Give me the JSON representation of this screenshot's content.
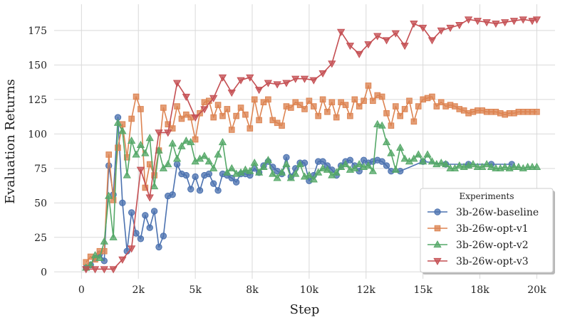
{
  "chart_data": {
    "type": "line",
    "xlabel": "Step",
    "ylabel": "Evaluation Returns",
    "xlim": [
      -1200,
      20800
    ],
    "ylim": [
      -5,
      194
    ],
    "xticks": [
      0,
      2500,
      5000,
      7500,
      10000,
      12500,
      15000,
      17500,
      20000
    ],
    "xtick_labels": [
      "0",
      "2k",
      "5k",
      "8k",
      "10k",
      "12k",
      "15k",
      "18k",
      "20k"
    ],
    "yticks": [
      0,
      25,
      50,
      75,
      100,
      125,
      150,
      175
    ],
    "ytick_labels": [
      "0",
      "25",
      "50",
      "75",
      "100",
      "125",
      "150",
      "175"
    ],
    "grid": true,
    "legend": {
      "title": "Experiments",
      "placement": "lower-right"
    },
    "series": [
      {
        "name": "3b-26w-baseline",
        "color": "#4c72b0",
        "marker": "circle",
        "x": [
          200,
          400,
          600,
          800,
          1000,
          1200,
          1400,
          1600,
          1800,
          2000,
          2200,
          2400,
          2600,
          2800,
          3000,
          3200,
          3400,
          3600,
          3800,
          4000,
          4200,
          4400,
          4600,
          4800,
          5000,
          5200,
          5400,
          5600,
          5800,
          6000,
          6200,
          6400,
          6600,
          6800,
          7000,
          7200,
          7400,
          7600,
          7800,
          8000,
          8200,
          8400,
          8600,
          8800,
          9000,
          9200,
          9400,
          9600,
          9800,
          10000,
          10200,
          10400,
          10600,
          10800,
          11000,
          11200,
          11400,
          11600,
          11800,
          12000,
          12200,
          12400,
          12600,
          12800,
          13000,
          13200,
          13400,
          13600,
          14000,
          15000,
          16000,
          17000,
          18000,
          18900
        ],
        "y": [
          3,
          5,
          10,
          13,
          8,
          77,
          56,
          112,
          50,
          15,
          43,
          28,
          24,
          41,
          32,
          44,
          18,
          26,
          55,
          56,
          78,
          71,
          70,
          60,
          69,
          59,
          70,
          71,
          64,
          59,
          71,
          70,
          68,
          65,
          71,
          71,
          70,
          75,
          72,
          77,
          80,
          76,
          73,
          71,
          83,
          69,
          75,
          79,
          79,
          66,
          70,
          80,
          80,
          77,
          74,
          70,
          77,
          80,
          81,
          77,
          73,
          81,
          79,
          80,
          81,
          80,
          77,
          73,
          73,
          80,
          78,
          78,
          78,
          78
        ]
      },
      {
        "name": "3b-26w-opt-v1",
        "color": "#dd8452",
        "marker": "square",
        "x": [
          200,
          400,
          600,
          800,
          1000,
          1200,
          1400,
          1600,
          1800,
          2000,
          2200,
          2400,
          2600,
          2800,
          3000,
          3200,
          3400,
          3600,
          3800,
          4000,
          4200,
          4400,
          4600,
          4800,
          5000,
          5200,
          5400,
          5600,
          5800,
          6000,
          6200,
          6400,
          6600,
          6800,
          7000,
          7200,
          7400,
          7600,
          7800,
          8000,
          8200,
          8400,
          8600,
          8800,
          9000,
          9200,
          9400,
          9600,
          9800,
          10000,
          10200,
          10400,
          10600,
          10800,
          11000,
          11200,
          11400,
          11600,
          11800,
          12000,
          12200,
          12400,
          12600,
          12800,
          13000,
          13200,
          13400,
          13600,
          13800,
          14000,
          14200,
          14400,
          14600,
          14800,
          15000,
          15200,
          15400,
          15600,
          15800,
          16000,
          16200,
          16400,
          16600,
          16800,
          17000,
          17200,
          17400,
          17600,
          17800,
          18000,
          18200,
          18400,
          18600,
          18800,
          19000,
          19200,
          19400,
          19600,
          19800,
          20000
        ],
        "y": [
          7,
          11,
          9,
          15,
          15,
          85,
          52,
          90,
          107,
          83,
          111,
          127,
          118,
          61,
          78,
          70,
          88,
          119,
          107,
          104,
          120,
          111,
          114,
          112,
          96,
          115,
          123,
          124,
          112,
          121,
          113,
          118,
          103,
          113,
          119,
          114,
          104,
          125,
          110,
          123,
          125,
          110,
          108,
          106,
          120,
          119,
          123,
          121,
          118,
          124,
          120,
          113,
          125,
          116,
          123,
          112,
          123,
          121,
          113,
          125,
          120,
          124,
          135,
          124,
          128,
          127,
          115,
          106,
          120,
          113,
          118,
          124,
          109,
          120,
          125,
          126,
          127,
          120,
          123,
          120,
          121,
          120,
          118,
          117,
          115,
          116,
          117,
          117,
          116,
          116,
          116,
          115,
          114,
          115,
          115,
          116,
          116,
          116,
          116,
          116
        ]
      },
      {
        "name": "3b-26w-opt-v2",
        "color": "#55a868",
        "marker": "triangle-up",
        "x": [
          200,
          400,
          600,
          800,
          1000,
          1200,
          1400,
          1600,
          1800,
          2000,
          2200,
          2400,
          2600,
          2800,
          3000,
          3200,
          3400,
          3600,
          3800,
          4000,
          4200,
          4400,
          4600,
          4800,
          5000,
          5200,
          5400,
          5600,
          5800,
          6000,
          6200,
          6400,
          6600,
          6800,
          7000,
          7200,
          7400,
          7600,
          7800,
          8000,
          8200,
          8400,
          8600,
          8800,
          9000,
          9200,
          9400,
          9600,
          9800,
          10000,
          10200,
          10400,
          10600,
          10800,
          11000,
          11200,
          11400,
          11600,
          11800,
          12000,
          12200,
          12400,
          12600,
          12800,
          13000,
          13200,
          13400,
          13600,
          13800,
          14000,
          14200,
          14400,
          14600,
          14800,
          15000,
          15200,
          15400,
          15600,
          15800,
          16000,
          16200,
          16400,
          16600,
          16800,
          17000,
          17200,
          17400,
          17600,
          17800,
          18000,
          18200,
          18400,
          18600,
          18800,
          19000,
          19200,
          19400,
          19600,
          19800,
          20000
        ],
        "y": [
          3,
          5,
          12,
          10,
          22,
          55,
          25,
          108,
          102,
          70,
          95,
          85,
          92,
          86,
          97,
          62,
          88,
          75,
          78,
          93,
          82,
          91,
          95,
          94,
          80,
          82,
          84,
          80,
          75,
          85,
          94,
          72,
          75,
          71,
          72,
          74,
          73,
          79,
          72,
          76,
          81,
          71,
          68,
          72,
          78,
          68,
          71,
          78,
          69,
          70,
          67,
          72,
          75,
          74,
          70,
          72,
          76,
          78,
          74,
          75,
          78,
          76,
          77,
          73,
          107,
          106,
          94,
          86,
          74,
          90,
          82,
          80,
          82,
          85,
          80,
          85,
          80,
          78,
          79,
          78,
          75,
          75,
          77,
          76,
          77,
          78,
          76,
          76,
          78,
          76,
          75,
          75,
          76,
          75,
          76,
          76,
          75,
          76,
          76,
          76
        ]
      },
      {
        "name": "3b-26w-opt-v3",
        "color": "#c44e52",
        "marker": "triangle-down",
        "x": [
          200,
          600,
          1000,
          1400,
          1800,
          2200,
          2600,
          3000,
          3400,
          3800,
          4200,
          4600,
          5000,
          5400,
          5800,
          6200,
          6600,
          7000,
          7400,
          7800,
          8200,
          8600,
          9000,
          9400,
          9800,
          10200,
          10600,
          11000,
          11400,
          11800,
          12200,
          12600,
          13000,
          13400,
          13800,
          14200,
          14600,
          15000,
          15400,
          15800,
          16200,
          16600,
          17000,
          17400,
          17800,
          18200,
          18600,
          19000,
          19400,
          19800,
          20000
        ],
        "y": [
          2,
          2,
          2,
          2,
          9,
          17,
          74,
          54,
          101,
          101,
          137,
          127,
          112,
          118,
          126,
          141,
          130,
          139,
          141,
          132,
          137,
          136,
          137,
          140,
          140,
          139,
          144,
          151,
          174,
          164,
          158,
          165,
          171,
          168,
          173,
          164,
          180,
          177,
          168,
          175,
          177,
          179,
          183,
          182,
          181,
          180,
          181,
          182,
          183,
          182,
          183
        ]
      }
    ]
  }
}
